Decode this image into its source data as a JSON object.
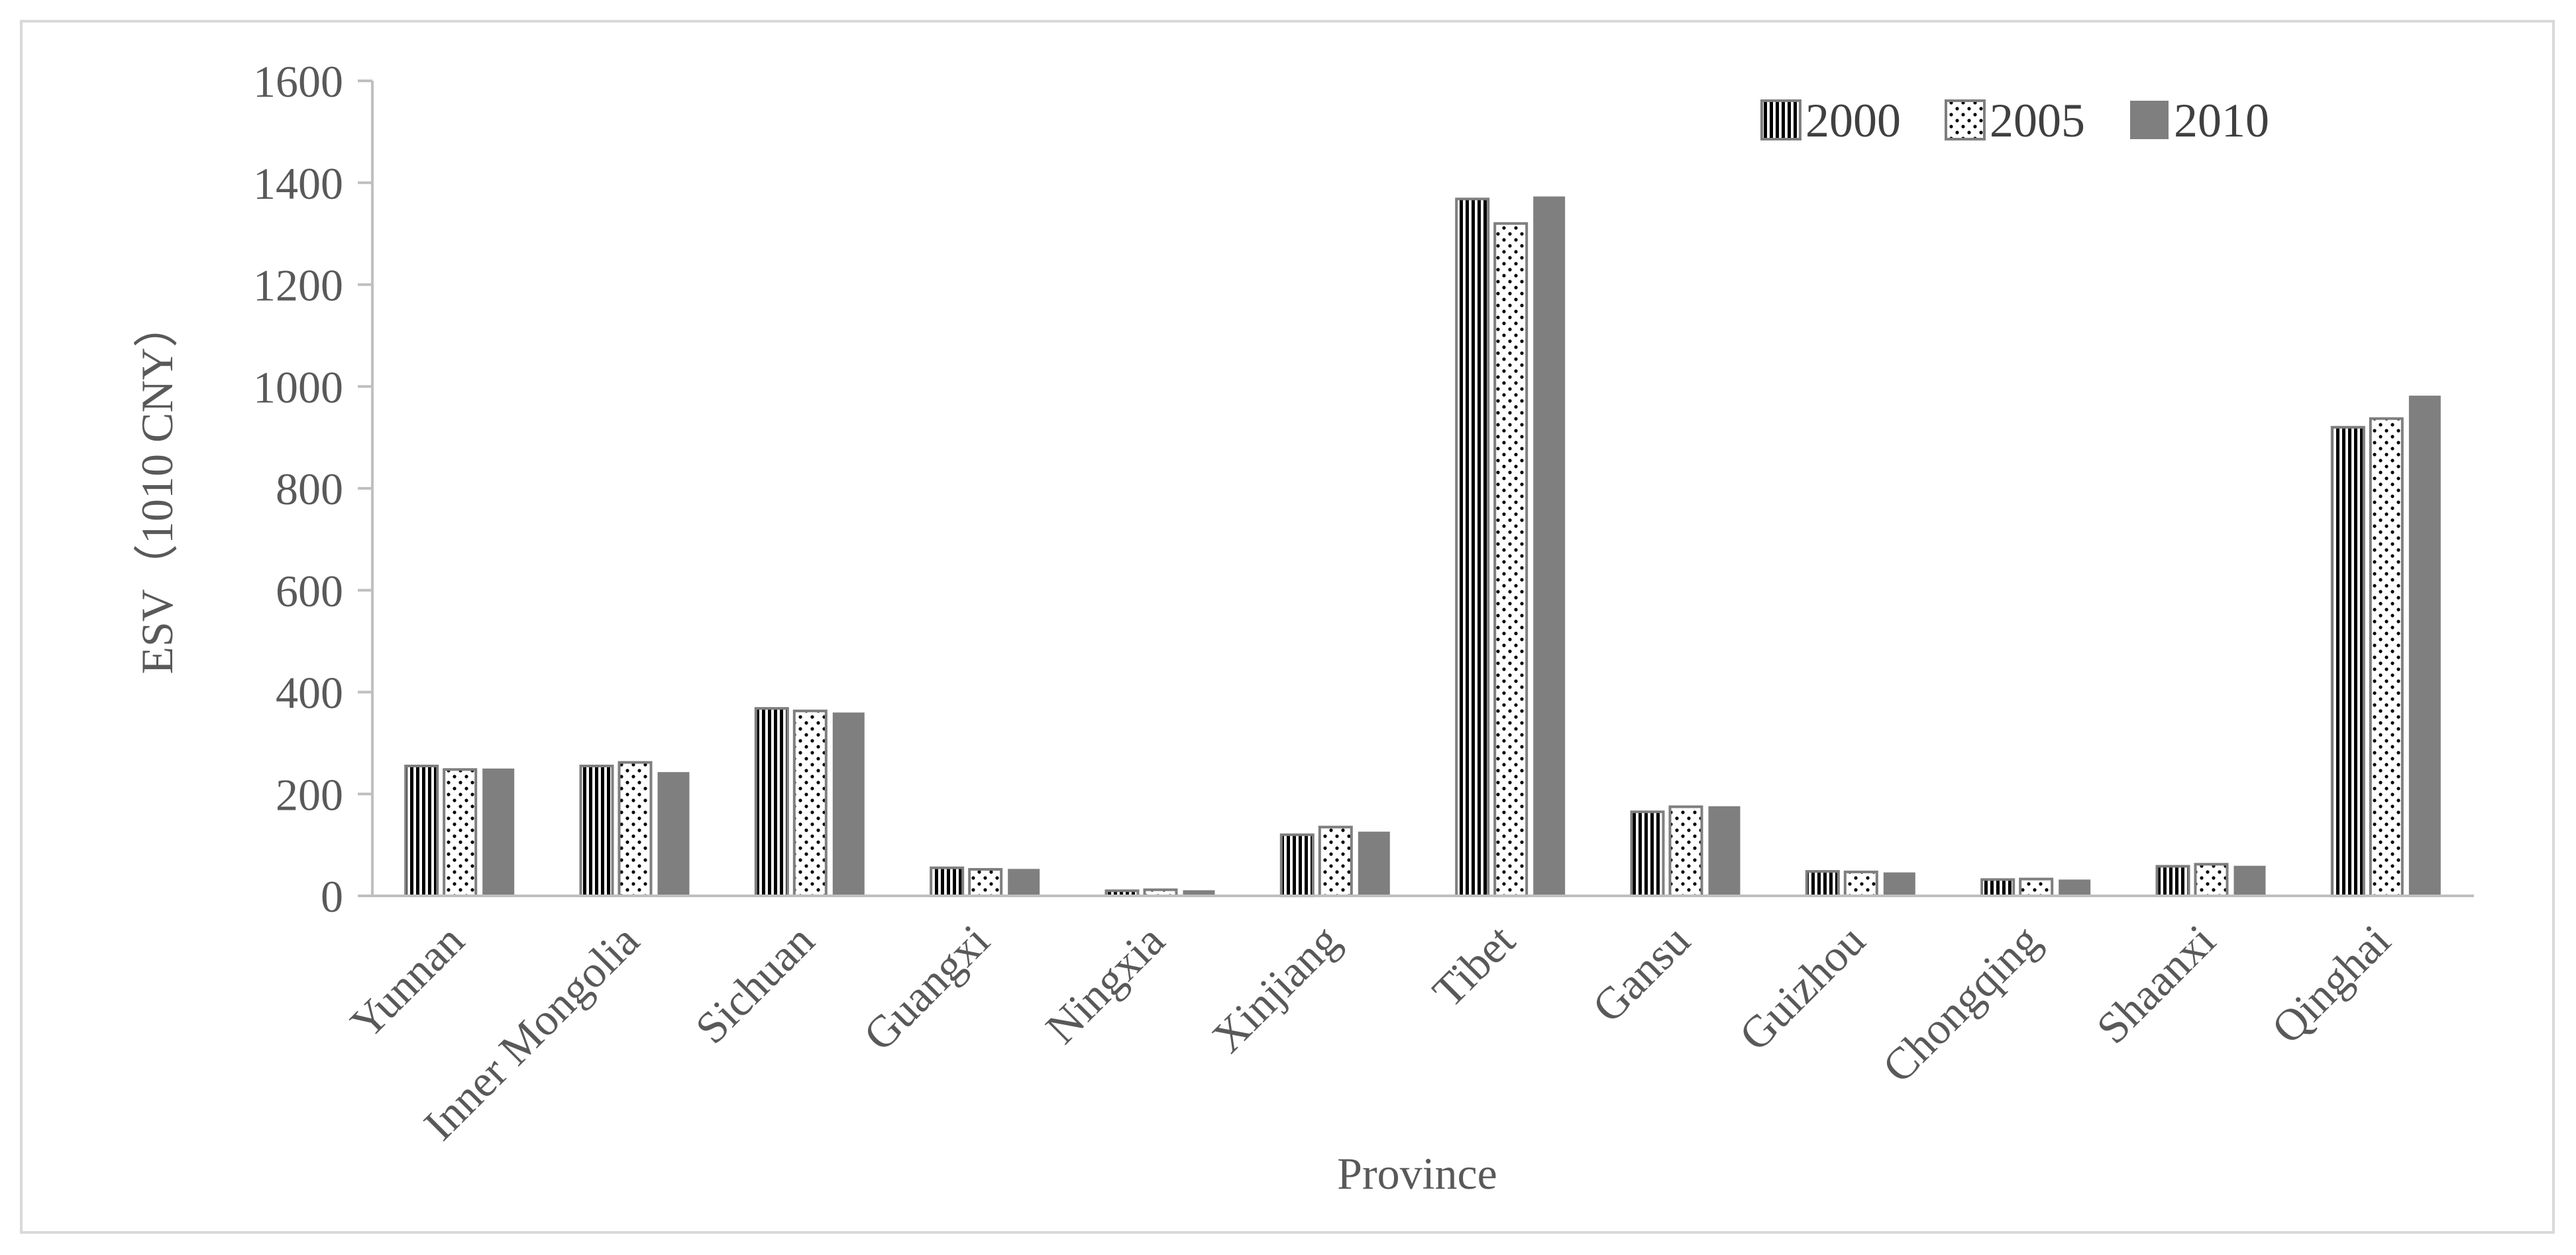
{
  "chart_data": {
    "type": "bar",
    "title": "",
    "xlabel": "Province",
    "ylabel": "ESV（1010 CNY）",
    "ylim": [
      0,
      1600
    ],
    "yticks": [
      0,
      200,
      400,
      600,
      800,
      1000,
      1200,
      1400,
      1600
    ],
    "grid": false,
    "legend_position": "top-right",
    "categories": [
      "Yunnan",
      "Inner Mongolia",
      "Sichuan",
      "Guangxi",
      "Ningxia",
      "Xinjiang",
      "Tibet",
      "Gansu",
      "Guizhou",
      "Chongqing",
      "Shaanxi",
      "Qinghai"
    ],
    "series": [
      {
        "name": "2000",
        "pattern": "vertical-stripes",
        "color": "#000000",
        "values": [
          255,
          255,
          368,
          55,
          10,
          120,
          1368,
          165,
          48,
          32,
          58,
          920
        ]
      },
      {
        "name": "2005",
        "pattern": "dots",
        "color": "#ffffff",
        "values": [
          248,
          262,
          363,
          52,
          12,
          135,
          1320,
          175,
          47,
          33,
          62,
          937
        ]
      },
      {
        "name": "2010",
        "pattern": "solid",
        "color": "#7f7f7f",
        "values": [
          250,
          243,
          360,
          53,
          11,
          126,
          1373,
          176,
          46,
          32,
          59,
          982
        ]
      }
    ]
  }
}
